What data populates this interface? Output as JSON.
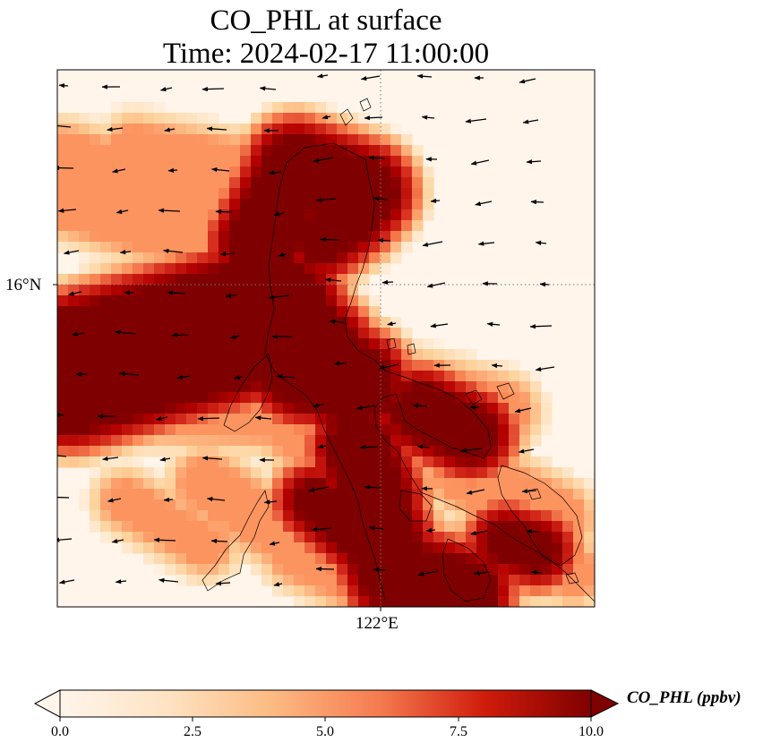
{
  "title": {
    "line1": "CO_PHL at surface",
    "line2": "Time: 2024-02-17 11:00:00"
  },
  "map": {
    "lat_tick_label": "16°N",
    "lon_tick_label": "122°E",
    "ocean_color": "#fff5eb",
    "concentration_color_high": "#7f0000",
    "features": [
      "gridded CO_PHL concentration field",
      "coastlines",
      "wind vectors",
      "dotted graticule"
    ]
  },
  "colorbar": {
    "label": "CO_PHL (ppbv)",
    "tick_labels": [
      "0.0",
      "2.5",
      "5.0",
      "7.5",
      "10.0"
    ],
    "min": 0,
    "max": 10,
    "extend": "both",
    "colormap_stops": [
      "#fff5eb",
      "#fdd49e",
      "#fc8d59",
      "#d7301f",
      "#b30000",
      "#7f0000"
    ]
  }
}
